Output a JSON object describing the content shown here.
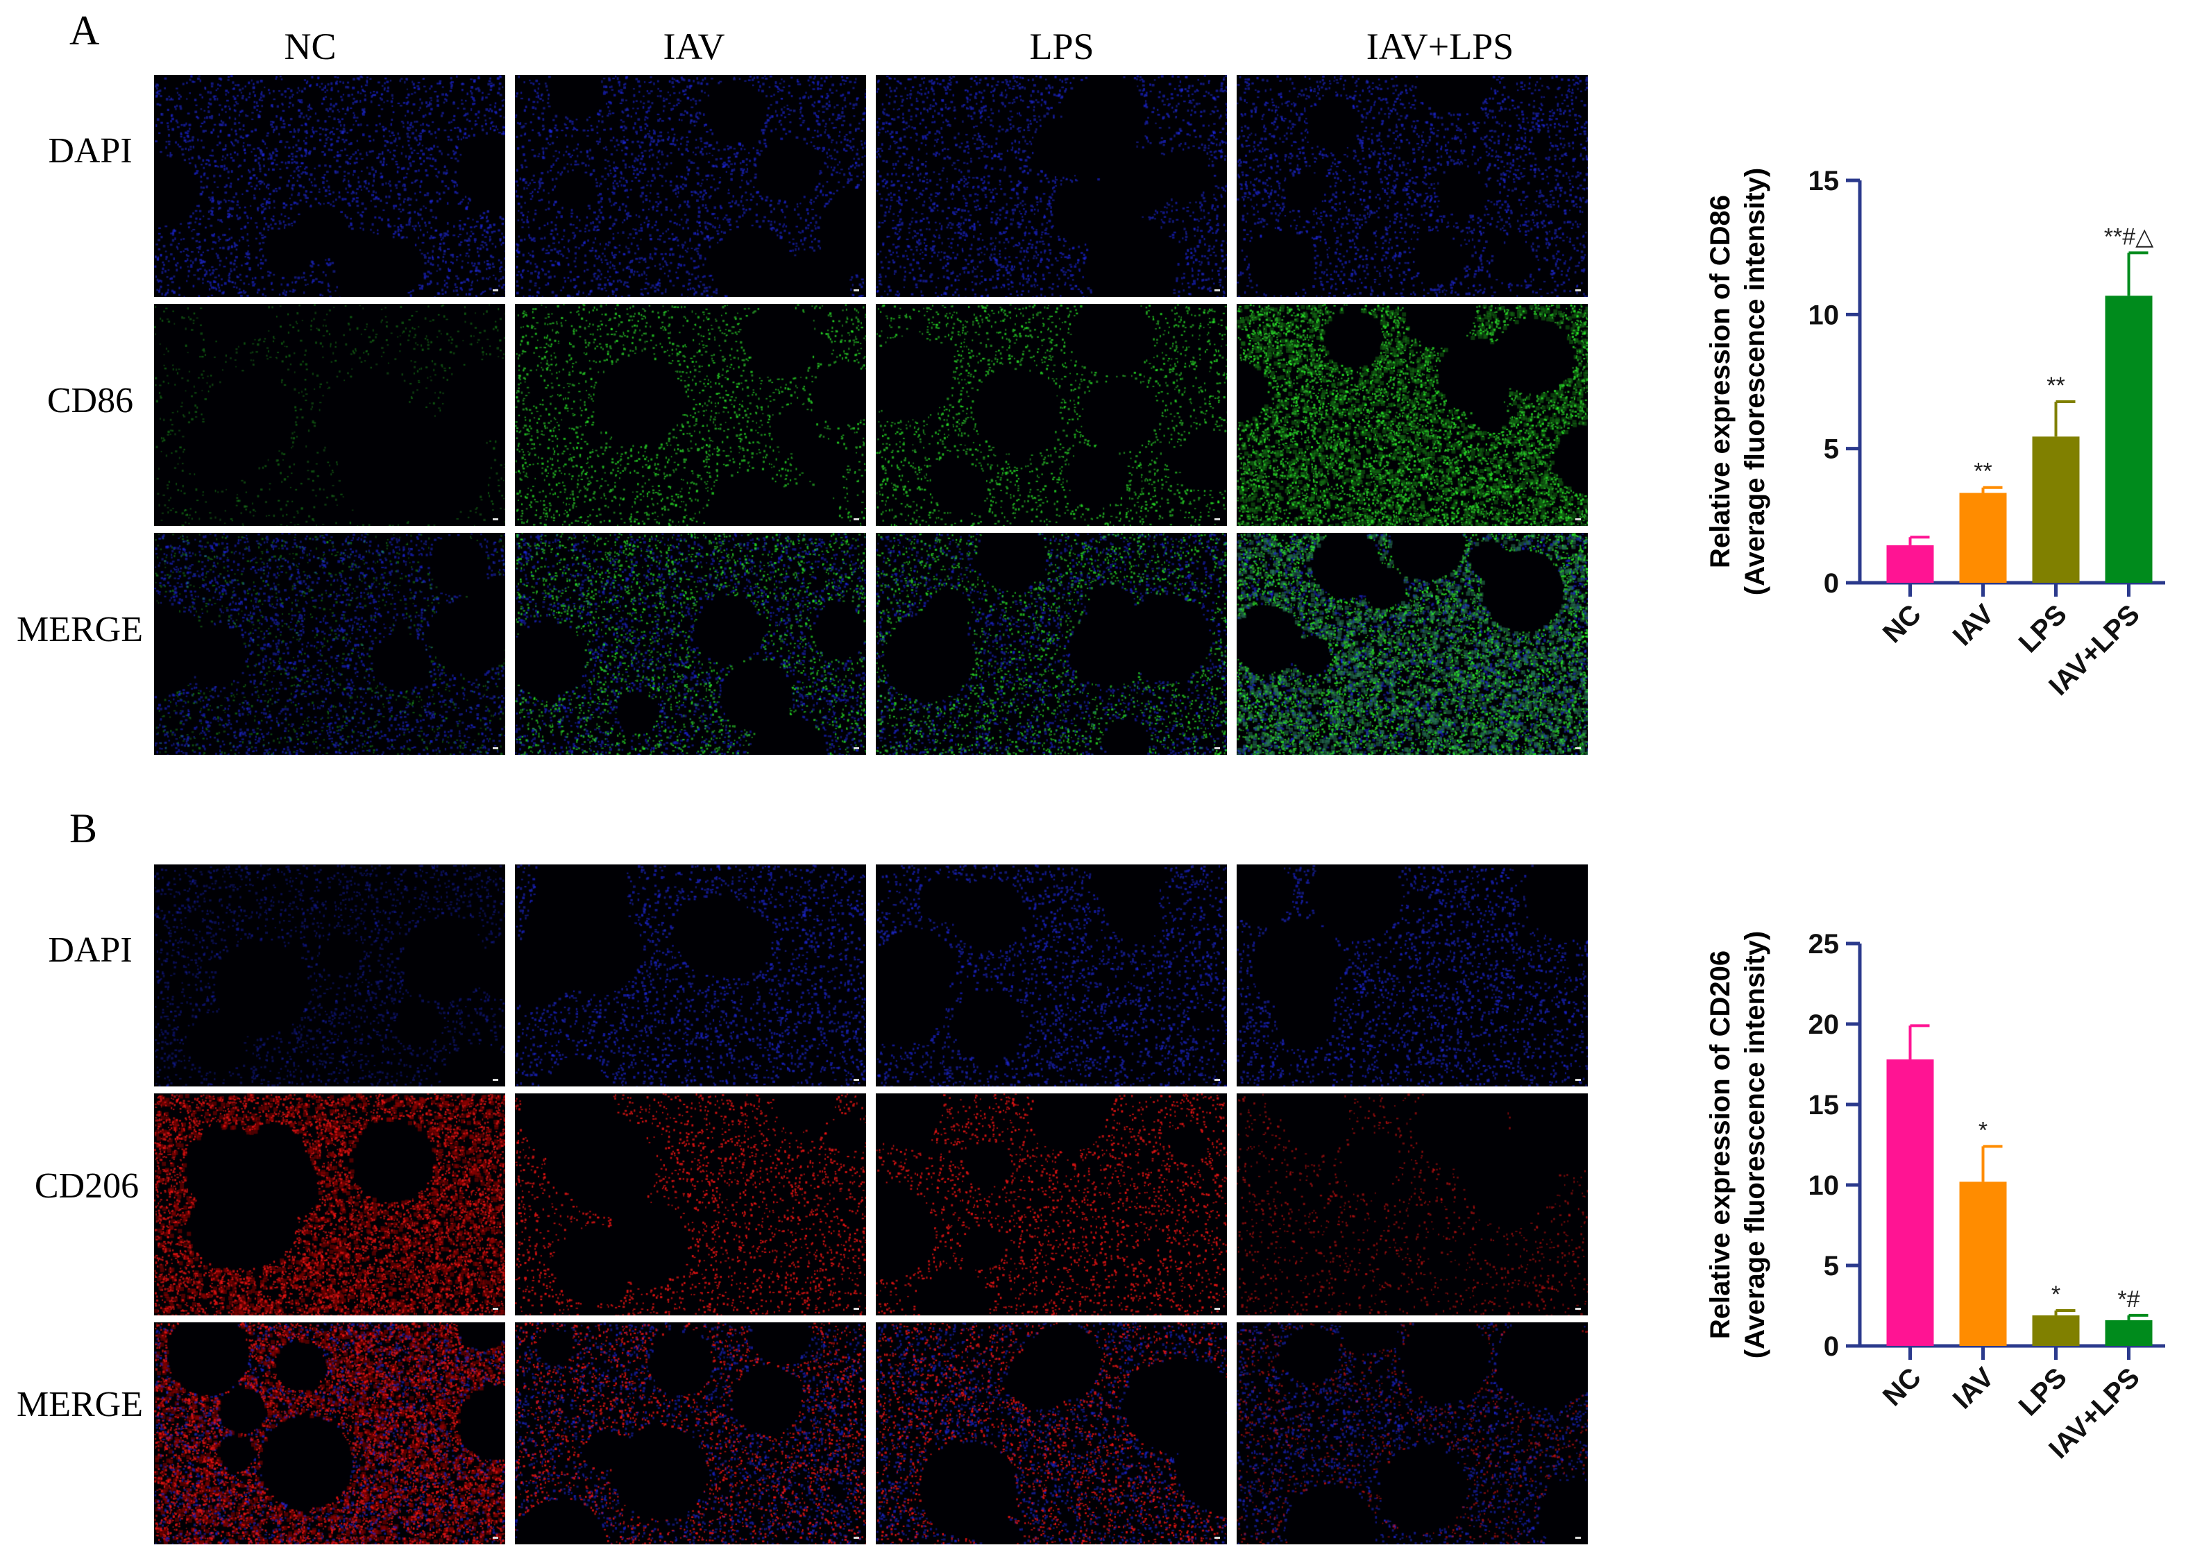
{
  "panels": [
    {
      "letter": "A",
      "columns": [
        "NC",
        "IAV",
        "LPS",
        "IAV+LPS"
      ],
      "rows": [
        "DAPI",
        "CD86",
        "MERGE"
      ],
      "chart_data": {
        "type": "bar",
        "categories": [
          "NC",
          "IAV",
          "LPS",
          "IAV+LPS"
        ],
        "values": [
          1.4,
          3.35,
          5.45,
          10.7
        ],
        "errors": [
          0.3,
          0.2,
          1.3,
          1.6
        ],
        "annotations": [
          "",
          "**",
          "**",
          "**#△"
        ],
        "colors": [
          "#ff1493",
          "#ff8c00",
          "#808000",
          "#008b1c"
        ],
        "ylabel_line1": "Relative expression of CD86",
        "ylabel_line2": "(Average fluorescence intensity)",
        "ylim": [
          0,
          15
        ],
        "yticks": [
          0,
          5,
          10,
          15
        ],
        "grid": false
      }
    },
    {
      "letter": "B",
      "columns": [
        "NC",
        "IAV",
        "LPS",
        "IAV+LPS"
      ],
      "rows": [
        "DAPI",
        "CD206",
        "MERGE"
      ],
      "chart_data": {
        "type": "bar",
        "categories": [
          "NC",
          "IAV",
          "LPS",
          "IAV+LPS"
        ],
        "values": [
          17.8,
          10.2,
          1.9,
          1.6
        ],
        "errors": [
          2.1,
          2.2,
          0.3,
          0.3
        ],
        "annotations": [
          "",
          "*",
          "*",
          "*#"
        ],
        "colors": [
          "#ff1493",
          "#ff8c00",
          "#808000",
          "#008b1c"
        ],
        "ylabel_line1": "Relative expression of CD206",
        "ylabel_line2": "(Average fluorescence intensity)",
        "ylim": [
          0,
          25
        ],
        "yticks": [
          0,
          5,
          10,
          15,
          20,
          25
        ],
        "grid": false
      }
    }
  ],
  "micrographs": {
    "A": [
      [
        "dapi",
        "dapi",
        "dapi",
        "dapi"
      ],
      [
        "green-weak",
        "green-mid",
        "green-mid",
        "green-strong"
      ],
      [
        "merge-green-weak",
        "merge-green-mid",
        "merge-green-mid",
        "merge-green-strong"
      ]
    ],
    "B": [
      [
        "dapi-dim",
        "dapi",
        "dapi",
        "dapi"
      ],
      [
        "red-strong",
        "red-mid",
        "red-mid",
        "red-weak"
      ],
      [
        "merge-red-strong",
        "merge-red-mid",
        "merge-red-mid",
        "merge-red-weak"
      ]
    ]
  }
}
